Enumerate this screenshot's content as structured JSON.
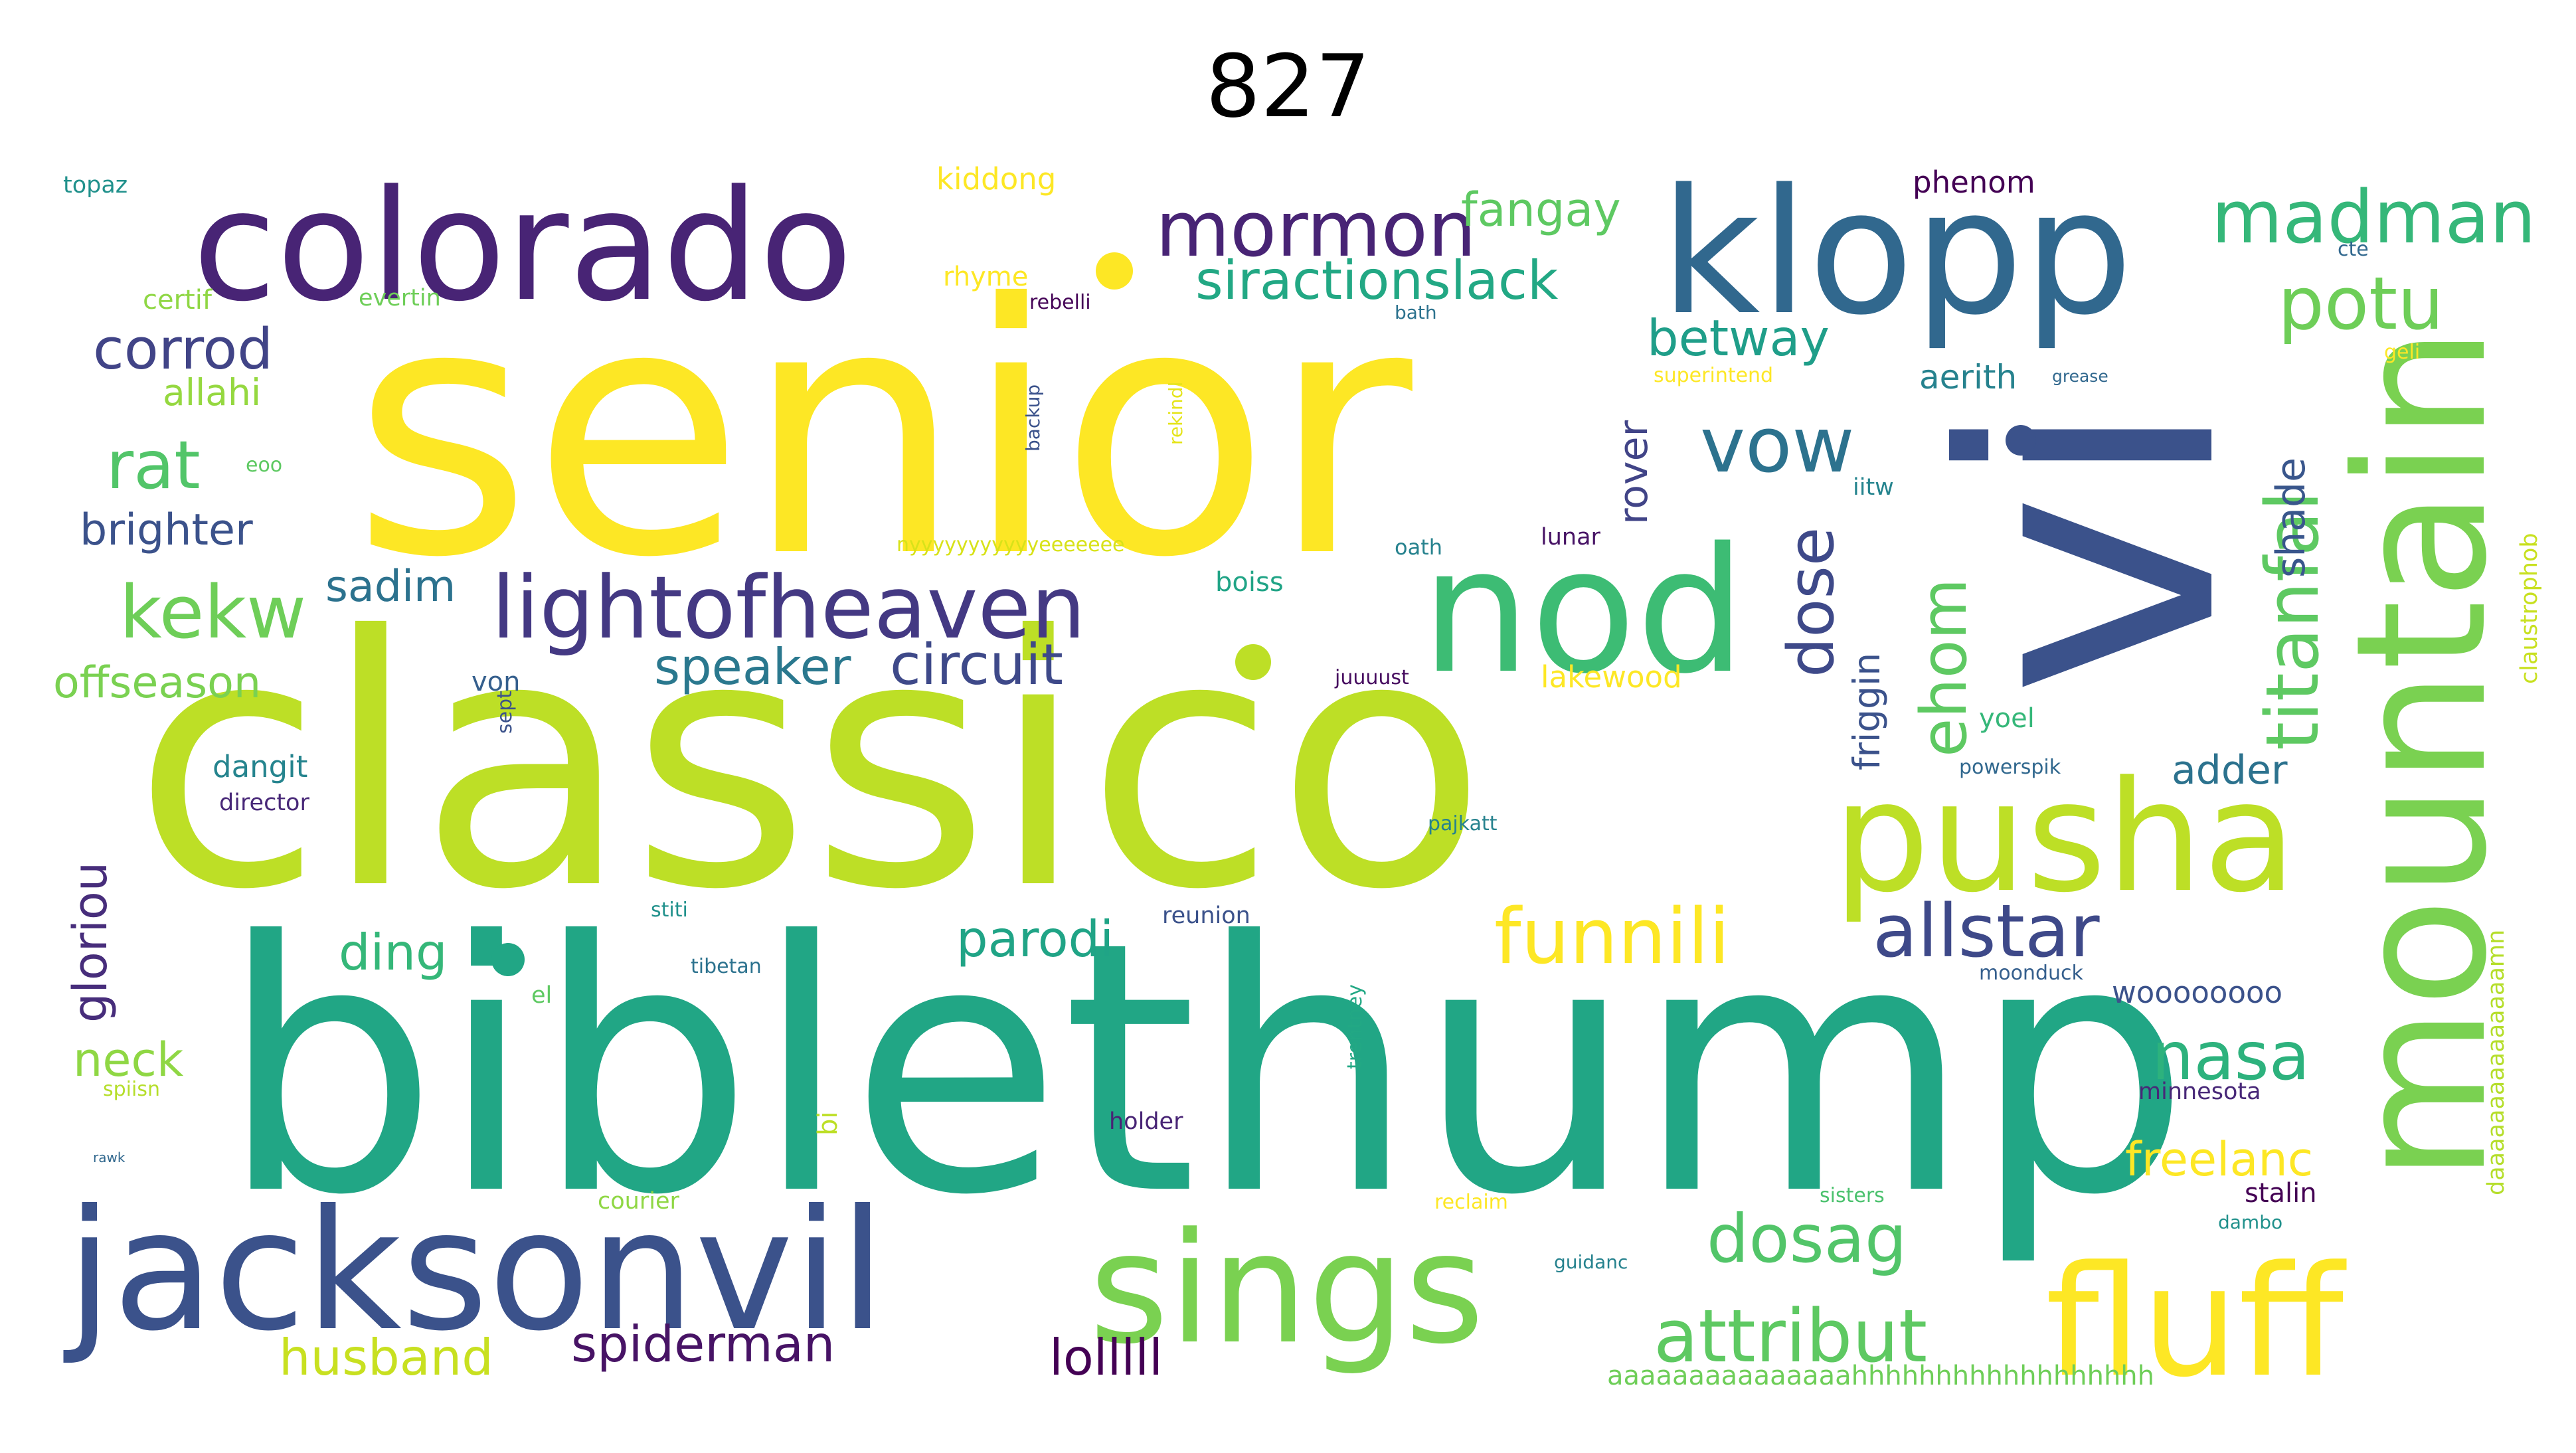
{
  "title": "827",
  "words": [
    {
      "text": "senior",
      "color": "#fde725",
      "rotate": false
    },
    {
      "text": "classico",
      "color": "#bddf26",
      "rotate": false
    },
    {
      "text": "biblethump",
      "color": "#21a685",
      "rotate": false
    },
    {
      "text": "vi",
      "color": "#3b528b",
      "rotate": true
    },
    {
      "text": "colorado",
      "color": "#482475",
      "rotate": false
    },
    {
      "text": "klopp",
      "color": "#31688e",
      "rotate": false
    },
    {
      "text": "jacksonvil",
      "color": "#3b528b",
      "rotate": false
    },
    {
      "text": "nod",
      "color": "#3dbc74",
      "rotate": false
    },
    {
      "text": "mountain",
      "color": "#7ad151",
      "rotate": true
    },
    {
      "text": "pusha",
      "color": "#bddf26",
      "rotate": false
    },
    {
      "text": "sings",
      "color": "#7ad151",
      "rotate": false
    },
    {
      "text": "fluff",
      "color": "#fde725",
      "rotate": false
    },
    {
      "text": "lightofheaven",
      "color": "#443983",
      "rotate": false
    },
    {
      "text": "mormon",
      "color": "#482475",
      "rotate": false
    },
    {
      "text": "madman",
      "color": "#35b779",
      "rotate": false
    },
    {
      "text": "potu",
      "color": "#6ece58",
      "rotate": false
    },
    {
      "text": "titanfal",
      "color": "#5ec962",
      "rotate": true
    },
    {
      "text": "vow",
      "color": "#2c728e",
      "rotate": false
    },
    {
      "text": "funnili",
      "color": "#fde725",
      "rotate": false
    },
    {
      "text": "allstar",
      "color": "#3e4989",
      "rotate": false
    },
    {
      "text": "attribut",
      "color": "#5ec962",
      "rotate": false
    },
    {
      "text": "dosag",
      "color": "#52c569",
      "rotate": false
    },
    {
      "text": "nasa",
      "color": "#2db27d",
      "rotate": false
    },
    {
      "text": "kekw",
      "color": "#6ece58",
      "rotate": false
    },
    {
      "text": "rat",
      "color": "#52c569",
      "rotate": false
    },
    {
      "text": "circuit",
      "color": "#3e4989",
      "rotate": false
    },
    {
      "text": "speaker",
      "color": "#2a788e",
      "rotate": false
    },
    {
      "text": "dose",
      "color": "#3e4989",
      "rotate": true
    },
    {
      "text": "ehom",
      "color": "#5ec962",
      "rotate": true
    },
    {
      "text": "corrod",
      "color": "#414487",
      "rotate": false
    },
    {
      "text": "siractionslack",
      "color": "#22a884",
      "rotate": false
    },
    {
      "text": "fangay",
      "color": "#5ec962",
      "rotate": false
    },
    {
      "text": "betway",
      "color": "#1f9e89",
      "rotate": false
    },
    {
      "text": "parodi",
      "color": "#20a486",
      "rotate": false
    },
    {
      "text": "ding",
      "color": "#35b779",
      "rotate": false
    },
    {
      "text": "spiderman",
      "color": "#471365",
      "rotate": false
    },
    {
      "text": "lolllll",
      "color": "#440154",
      "rotate": false
    },
    {
      "text": "husband",
      "color": "#c8e020",
      "rotate": false
    },
    {
      "text": "freelanc",
      "color": "#fde725",
      "rotate": false
    },
    {
      "text": "brighter",
      "color": "#3b528b",
      "rotate": false
    },
    {
      "text": "offseason",
      "color": "#7ad151",
      "rotate": false
    },
    {
      "text": "sadim",
      "color": "#2c728e",
      "rotate": false
    },
    {
      "text": "neck",
      "color": "#8fd744",
      "rotate": false
    },
    {
      "text": "gloriou",
      "color": "#472d7b",
      "rotate": true
    },
    {
      "text": "allahi",
      "color": "#95d840",
      "rotate": false
    },
    {
      "text": "rover",
      "color": "#414487",
      "rotate": true
    },
    {
      "text": "friggin",
      "color": "#3b528b",
      "rotate": true
    },
    {
      "text": "shade",
      "color": "#39568c",
      "rotate": true
    },
    {
      "text": "adder",
      "color": "#2c728e",
      "rotate": false
    },
    {
      "text": "woooooooo",
      "color": "#3b528b",
      "rotate": false
    },
    {
      "text": "stalin",
      "color": "#440154",
      "rotate": false
    },
    {
      "text": "minnesota",
      "color": "#482878",
      "rotate": false
    },
    {
      "text": "aerith",
      "color": "#26828e",
      "rotate": false
    },
    {
      "text": "kiddong",
      "color": "#fde725",
      "rotate": false
    },
    {
      "text": "phenom",
      "color": "#440154",
      "rotate": false
    },
    {
      "text": "topaz",
      "color": "#21918c",
      "rotate": false
    },
    {
      "text": "certif",
      "color": "#8fd744",
      "rotate": false
    },
    {
      "text": "evertin",
      "color": "#6ece58",
      "rotate": false
    },
    {
      "text": "rhyme",
      "color": "#fde725",
      "rotate": false
    },
    {
      "text": "rebelli",
      "color": "#450457",
      "rotate": false
    },
    {
      "text": "bath",
      "color": "#2c728e",
      "rotate": false
    },
    {
      "text": "cte",
      "color": "#31688e",
      "rotate": false
    },
    {
      "text": "geli",
      "color": "#fde725",
      "rotate": false
    },
    {
      "text": "superintend",
      "color": "#fde725",
      "rotate": false
    },
    {
      "text": "grease",
      "color": "#31688e",
      "rotate": false
    },
    {
      "text": "iitw",
      "color": "#25848e",
      "rotate": false
    },
    {
      "text": "lunar",
      "color": "#471365",
      "rotate": false
    },
    {
      "text": "oath",
      "color": "#26828e",
      "rotate": false
    },
    {
      "text": "boiss",
      "color": "#20a486",
      "rotate": false
    },
    {
      "text": "juuuust",
      "color": "#470d60",
      "rotate": false
    },
    {
      "text": "lakewood",
      "color": "#fde725",
      "rotate": false
    },
    {
      "text": "yoel",
      "color": "#35b779",
      "rotate": false
    },
    {
      "text": "powerspik",
      "color": "#31688e",
      "rotate": false
    },
    {
      "text": "pajkatt",
      "color": "#26828e",
      "rotate": false
    },
    {
      "text": "reunion",
      "color": "#3b528b",
      "rotate": false
    },
    {
      "text": "moonduck",
      "color": "#355f8d",
      "rotate": false
    },
    {
      "text": "bi",
      "color": "#bddf26",
      "rotate": true
    },
    {
      "text": "trentney",
      "color": "#22a884",
      "rotate": true
    },
    {
      "text": "holder",
      "color": "#482475",
      "rotate": false
    },
    {
      "text": "reclaim",
      "color": "#fde725",
      "rotate": false
    },
    {
      "text": "sisters",
      "color": "#4ac16d",
      "rotate": false
    },
    {
      "text": "dambo",
      "color": "#21918c",
      "rotate": false
    },
    {
      "text": "guidanc",
      "color": "#26828e",
      "rotate": false
    },
    {
      "text": "courier",
      "color": "#8fd744",
      "rotate": false
    },
    {
      "text": "tibetan",
      "color": "#2c728e",
      "rotate": false
    },
    {
      "text": "el",
      "color": "#5ec962",
      "rotate": false
    },
    {
      "text": "stiti",
      "color": "#21918c",
      "rotate": false
    },
    {
      "text": "spiisn",
      "color": "#b5de2b",
      "rotate": false
    },
    {
      "text": "rawk",
      "color": "#31688e",
      "rotate": false
    },
    {
      "text": "dangit",
      "color": "#25848e",
      "rotate": false
    },
    {
      "text": "director",
      "color": "#482878",
      "rotate": false
    },
    {
      "text": "von",
      "color": "#355f8d",
      "rotate": false
    },
    {
      "text": "sept",
      "color": "#3b528b",
      "rotate": true
    },
    {
      "text": "nyyyyyyyyyyyeeeeeee",
      "color": "#d8e219",
      "rotate": false
    },
    {
      "text": "backup",
      "color": "#3b528b",
      "rotate": true
    },
    {
      "text": "rekindl",
      "color": "#e5e419",
      "rotate": true
    },
    {
      "text": "eoo",
      "color": "#5ec962",
      "rotate": false
    },
    {
      "text": "claustrophob",
      "color": "#c8e020",
      "rotate": true
    },
    {
      "text": "daaaaaaaaaaaaaaamn",
      "color": "#b5de2b",
      "rotate": true
    },
    {
      "text": "aaaaaaaaaaaaaaahhhhhhhhhhhhhhhhhh",
      "color": "#6ece58",
      "rotate": false
    }
  ]
}
